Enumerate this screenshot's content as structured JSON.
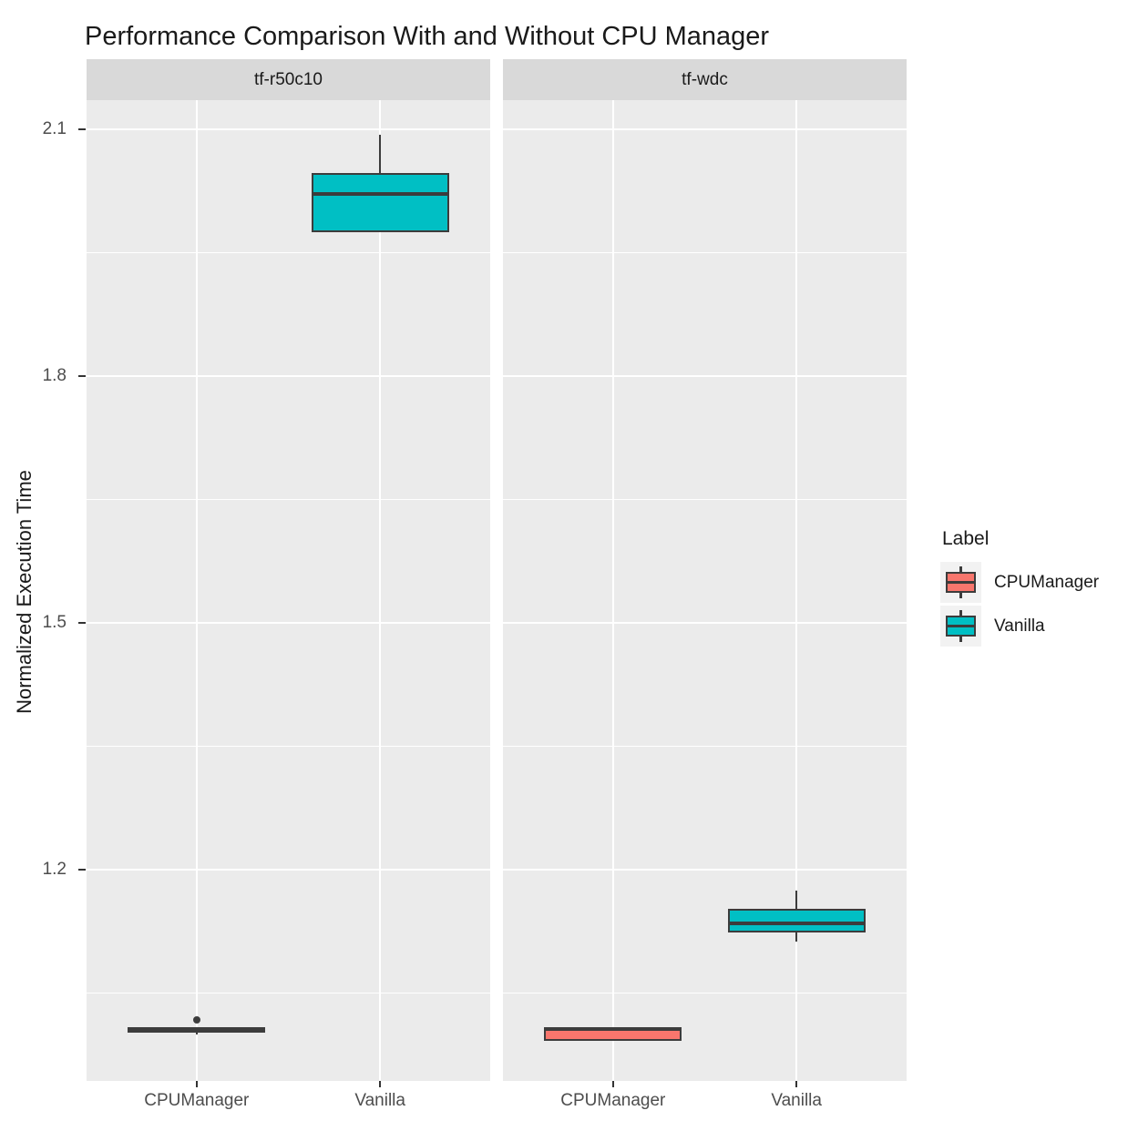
{
  "title": "Performance Comparison With and Without CPU Manager",
  "style": {
    "panel_bg": "#EBEBEB",
    "strip_bg": "#D9D9D9",
    "grid_color": "#FFFFFF",
    "stroke": "#3C3C3C",
    "tick_mark_color": "#333333",
    "tick_label_color": "#4D4D4D",
    "text_color": "#1A1A1A",
    "legend_key_bg": "#F2F2F2",
    "series_colors": {
      "CPUManager": "#F8766D",
      "Vanilla": "#00BFC4"
    }
  },
  "chart_data": {
    "type": "boxplot",
    "title": "Performance Comparison With and Without CPU Manager",
    "xlabel": "",
    "ylabel": "Normalized Execution Time",
    "ylim": [
      0.943,
      2.136
    ],
    "yticks": [
      1.2,
      1.5,
      1.8,
      2.1
    ],
    "ytick_labels": [
      "1.2",
      "1.5",
      "1.8",
      "2.1"
    ],
    "yticks_minor": [
      1.05,
      1.35,
      1.65,
      1.95
    ],
    "grid": "white major+minor horizontal lines and major vertical lines on grey panel",
    "legend": {
      "title": "Label",
      "position": "right",
      "entries": [
        {
          "label": "CPUManager",
          "color": "#F8766D"
        },
        {
          "label": "Vanilla",
          "color": "#00BFC4"
        }
      ]
    },
    "facets": [
      {
        "label": "tf-r50c10",
        "categories": [
          "CPUManager",
          "Vanilla"
        ],
        "boxes": [
          {
            "category": "CPUManager",
            "series": "CPUManager",
            "color": "#F8766D",
            "whisker_low": 0.999,
            "q1": 1.002,
            "median": 1.005,
            "q3": 1.008,
            "whisker_high": 1.009,
            "outliers": [
              1.017
            ]
          },
          {
            "category": "Vanilla",
            "series": "Vanilla",
            "color": "#00BFC4",
            "whisker_low": 1.975,
            "q1": 1.975,
            "median": 2.022,
            "q3": 2.047,
            "whisker_high": 2.094,
            "outliers": []
          }
        ]
      },
      {
        "label": "tf-wdc",
        "categories": [
          "CPUManager",
          "Vanilla"
        ],
        "boxes": [
          {
            "category": "CPUManager",
            "series": "CPUManager",
            "color": "#F8766D",
            "whisker_low": 0.992,
            "q1": 0.992,
            "median": 1.006,
            "q3": 1.008,
            "whisker_high": 1.009,
            "outliers": []
          },
          {
            "category": "Vanilla",
            "series": "Vanilla",
            "color": "#00BFC4",
            "whisker_low": 1.113,
            "q1": 1.124,
            "median": 1.135,
            "q3": 1.152,
            "whisker_high": 1.174,
            "outliers": []
          }
        ]
      }
    ]
  }
}
